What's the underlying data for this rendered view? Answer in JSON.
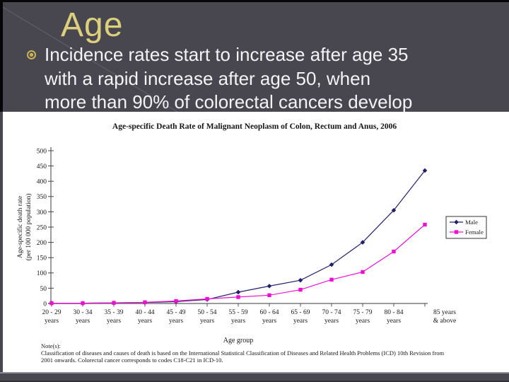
{
  "slide": {
    "title": "Age",
    "bullet_text": "Incidence rates start to increase after age 35\nwith a rapid increase after age 50, when\nmore than 90% of colorectal cancers develop",
    "colors": {
      "background": "#48464f",
      "title": "#ddd07c",
      "bullet": "#c8b258",
      "body_text": "#f4f3f5",
      "panel": "#ffffff",
      "footer": "#49474f",
      "footer_edge": "#8d8b95",
      "male": "#23206b",
      "female": "#ee10d2"
    }
  },
  "chart_data": {
    "type": "line",
    "title": "Age-specific Death Rate of Malignant Neoplasm of Colon, Rectum and Anus, 2006",
    "xlabel": "Age group",
    "ylabel_line1": "Age-specific death rate",
    "ylabel_line2": "(per 100 000 population)",
    "ylim": [
      0,
      500
    ],
    "ytick_step": 50,
    "grid": false,
    "legend_position": "right",
    "categories": [
      "20 - 29 years",
      "30 - 34 years",
      "35 - 39 years",
      "40 - 44 years",
      "45 - 49 years",
      "50 - 54 years",
      "55 - 59 years",
      "60 - 64 years",
      "65 - 69 years",
      "70 - 74 years",
      "75 - 79 years",
      "80 - 84 years",
      "85 years & above"
    ],
    "series": [
      {
        "name": "Male",
        "color": "#23206b",
        "marker": "diamond",
        "values": [
          1,
          1,
          2,
          3,
          6,
          13,
          37,
          57,
          76,
          127,
          200,
          305,
          435
        ]
      },
      {
        "name": "Female",
        "color": "#ee10d2",
        "marker": "square",
        "values": [
          1,
          1,
          2,
          4,
          8,
          15,
          21,
          27,
          45,
          78,
          103,
          170,
          258
        ]
      }
    ],
    "note_label": "Note(s):",
    "note_text": "Classification of diseases and causes of death is based on the International Statistical Classification of Diseases and Related Health Problems (ICD) 10th Revision from\n2001 onwards. Colorectal cancer corresponds to codes C18-C21 in ICD-10."
  }
}
